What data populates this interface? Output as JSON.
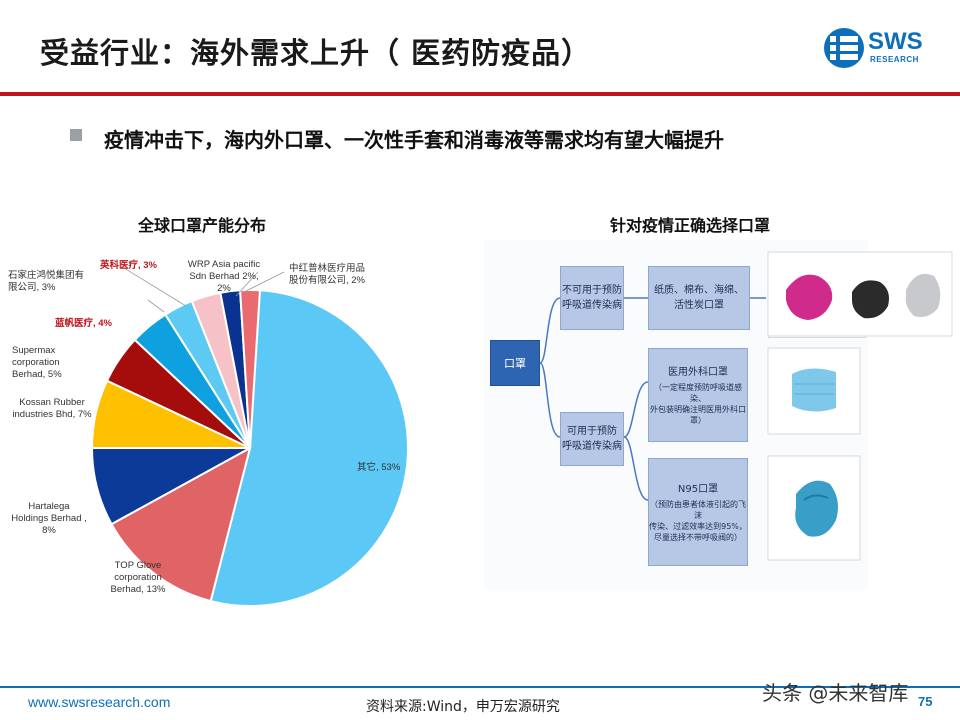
{
  "header": {
    "title": "受益行业：海外需求上升（ 医药防疫品）",
    "logo_text": "SWS",
    "logo_sub": "RESEARCH"
  },
  "headline": "疫情冲击下，海内外口罩、一次性手套和消毒液等需求均有望大幅提升",
  "chart_data": {
    "type": "pie",
    "title": "全球口罩产能分布",
    "slices": [
      {
        "name": "其它",
        "value": 53,
        "label": "其它, 53%",
        "color": "#5bc8f5"
      },
      {
        "name": "TOP Glove corporation Berhad",
        "value": 13,
        "label": "TOP Glove corporation Berhad, 13%",
        "color": "#e06466"
      },
      {
        "name": "Hartalega Holdings Berhad",
        "value": 8,
        "label": "Hartalega Holdings Berhad , 8%",
        "color": "#0b3a99"
      },
      {
        "name": "Kossan Rubber industries Bhd",
        "value": 7,
        "label": "Kossan Rubber industries Bhd, 7%",
        "color": "#ffc000"
      },
      {
        "name": "Supermax corporation Berhad",
        "value": 5,
        "label": "Supermax corporation Berhad, 5%",
        "color": "#a50d0d"
      },
      {
        "name": "蓝帆医疗",
        "value": 4,
        "label": "蓝帆医疗, 4%",
        "color": "#0fa0e0"
      },
      {
        "name": "石家庄鸿悦集团有限公司",
        "value": 3,
        "label": "石家庄鸿悦集团有限公司, 3%",
        "color": "#5ccaf2"
      },
      {
        "name": "英科医疗",
        "value": 3,
        "label": "英科医疗, 3%",
        "color": "#f7c2c7"
      },
      {
        "name": "WRP Asia pacific Sdn Berhad",
        "value": 2,
        "label": "WRP Asia pacific Sdn Berhad 2%, 2%",
        "color": "#0a3391"
      },
      {
        "name": "中红普林医疗用品股份有限公司",
        "value": 2,
        "label": "中红普林医疗用品股份有限公司, 2%",
        "color": "#e96a6f"
      }
    ],
    "legend": "none",
    "labels": {
      "qita": "其它, 53%",
      "top1": "TOP Glove",
      "top2": "corporation",
      "top3": "Berhad, 13%",
      "har1": "Hartalega",
      "har2": "Holdings Berhad ,",
      "har3": "8%",
      "kos1": "Kossan Rubber",
      "kos2": "industries Bhd, 7%",
      "sup1": "Supermax",
      "sup2": "corporation",
      "sup3": "Berhad, 5%",
      "lanfan": "蓝帆医疗, 4%",
      "sjz1": "石家庄鸿悦集团有",
      "sjz2": "限公司, 3%",
      "yingke": "英科医疗, 3%",
      "wrp1": "WRP Asia pacific",
      "wrp2": "Sdn Berhad 2%,",
      "wrp3": "2%",
      "zh1": "中红普林医疗用品",
      "zh2": "股份有限公司, 2%"
    }
  },
  "diagram": {
    "title": "针对疫情正确选择口罩",
    "root": "口罩",
    "branch_no": "不可用于预防呼吸道传染病",
    "branch_no_l1": "不可用于预防",
    "branch_no_l2": "呼吸道传染病",
    "branch_yes_l1": "可用于预防",
    "branch_yes_l2": "呼吸道传染病",
    "no_types_l1": "纸质、棉布、海绵、",
    "no_types_l2": "活性炭口罩",
    "surgical_head": "医用外科口罩",
    "surgical_sub1": "（一定程度预防呼吸道感染、",
    "surgical_sub2": "外包装明确注明医用外科口罩）",
    "n95_head": "N95口罩",
    "n95_sub1": "（预防由患者体液引起的飞沫",
    "n95_sub2": "传染、过滤效率达到95%，",
    "n95_sub3": "尽量选择不带呼吸阀的）"
  },
  "footer": {
    "url": "www.swsresearch.com",
    "source": "资料来源:Wind，申万宏源研究",
    "watermark": "头条 @未来智库",
    "page": "75"
  },
  "colors": {
    "brand_blue": "#0d6fba",
    "accent_red": "#c0161c"
  }
}
